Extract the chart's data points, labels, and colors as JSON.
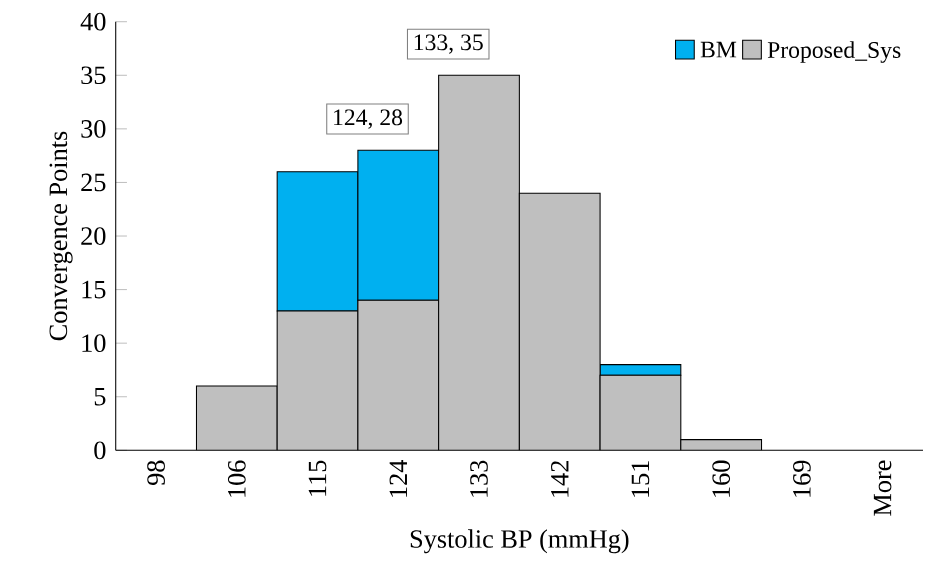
{
  "chart_data": {
    "type": "bar",
    "stacked": true,
    "xlabel": "Systolic BP (mmHg)",
    "ylabel": "Convergence Points",
    "categories": [
      "98",
      "106",
      "115",
      "124",
      "133",
      "142",
      "151",
      "160",
      "169",
      "More"
    ],
    "series": [
      {
        "name": "Proposed_Sys",
        "color": "#bfbfbf",
        "values": [
          0,
          6,
          13,
          14,
          35,
          24,
          7,
          1,
          0,
          0
        ]
      },
      {
        "name": "BM",
        "color": "#00b0f0",
        "values": [
          0,
          0,
          13,
          14,
          0,
          0,
          1,
          0,
          0,
          0
        ]
      }
    ],
    "ylim": [
      0,
      40
    ],
    "yticks": [
      0,
      5,
      10,
      15,
      20,
      25,
      30,
      35,
      40
    ],
    "grid": false,
    "legend": "top right",
    "annotations": [
      {
        "text": "124, 28",
        "x": "124",
        "y": 28
      },
      {
        "text": "133, 35",
        "x": "133",
        "y": 35
      }
    ]
  }
}
